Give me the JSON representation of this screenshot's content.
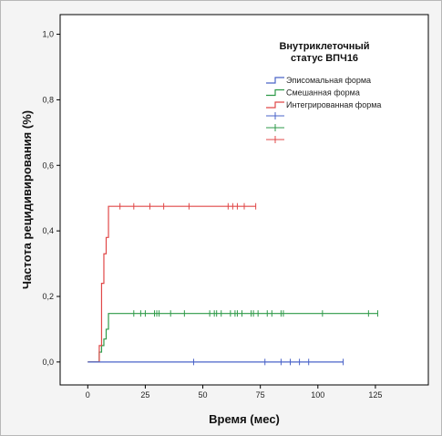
{
  "chart_data": {
    "type": "line",
    "step": true,
    "xlabel": "Время (мес)",
    "ylabel": "Частота рецидивирования (%)",
    "xlim": [
      -12,
      148
    ],
    "ylim": [
      -0.07,
      1.06
    ],
    "xticks": [
      0,
      25,
      50,
      75,
      100,
      125
    ],
    "yticks": [
      0.0,
      0.2,
      0.4,
      0.6,
      0.8,
      1.0
    ],
    "ytick_labels": [
      "0,0",
      "0,2",
      "0,4",
      "0,6",
      "0,8",
      "1,0"
    ],
    "grid": false,
    "legend": {
      "title_lines": [
        "Внутриклеточный",
        "статус ВПЧ16"
      ],
      "placement": "top-right",
      "censor_marker_entries": 3
    },
    "series": [
      {
        "name": "Эписомальная форма",
        "color": "#4a63c8",
        "steps": [
          [
            0,
            0.0
          ],
          [
            111,
            0.0
          ]
        ],
        "censored": [
          [
            46,
            0.0
          ],
          [
            77,
            0.0
          ],
          [
            84,
            0.0
          ],
          [
            88,
            0.0
          ],
          [
            92,
            0.0
          ],
          [
            96,
            0.0
          ],
          [
            111,
            0.0
          ]
        ]
      },
      {
        "name": "Смешанная форма",
        "color": "#2e9a48",
        "steps": [
          [
            0,
            0.0
          ],
          [
            4,
            0.0
          ],
          [
            5,
            0.03
          ],
          [
            6,
            0.05
          ],
          [
            7,
            0.07
          ],
          [
            8,
            0.1
          ],
          [
            9,
            0.148
          ],
          [
            126,
            0.148
          ]
        ],
        "censored": [
          [
            20,
            0.148
          ],
          [
            23,
            0.148
          ],
          [
            25,
            0.148
          ],
          [
            29,
            0.148
          ],
          [
            30,
            0.148
          ],
          [
            31,
            0.148
          ],
          [
            36,
            0.148
          ],
          [
            42,
            0.148
          ],
          [
            53,
            0.148
          ],
          [
            55,
            0.148
          ],
          [
            56,
            0.148
          ],
          [
            58,
            0.148
          ],
          [
            62,
            0.148
          ],
          [
            64,
            0.148
          ],
          [
            65,
            0.148
          ],
          [
            67,
            0.148
          ],
          [
            71,
            0.148
          ],
          [
            72,
            0.148
          ],
          [
            74,
            0.148
          ],
          [
            78,
            0.148
          ],
          [
            80,
            0.148
          ],
          [
            84,
            0.148
          ],
          [
            85,
            0.148
          ],
          [
            102,
            0.148
          ],
          [
            122,
            0.148
          ],
          [
            126,
            0.148
          ]
        ]
      },
      {
        "name": "Интегрированная форма",
        "color": "#e04848",
        "steps": [
          [
            0,
            0.0
          ],
          [
            4,
            0.0
          ],
          [
            5,
            0.05
          ],
          [
            6,
            0.24
          ],
          [
            7,
            0.33
          ],
          [
            8,
            0.38
          ],
          [
            9,
            0.475
          ],
          [
            73,
            0.475
          ]
        ],
        "censored": [
          [
            14,
            0.475
          ],
          [
            20,
            0.475
          ],
          [
            27,
            0.475
          ],
          [
            33,
            0.475
          ],
          [
            44,
            0.475
          ],
          [
            61,
            0.475
          ],
          [
            63,
            0.475
          ],
          [
            65,
            0.475
          ],
          [
            68,
            0.475
          ],
          [
            73,
            0.475
          ]
        ]
      }
    ]
  }
}
